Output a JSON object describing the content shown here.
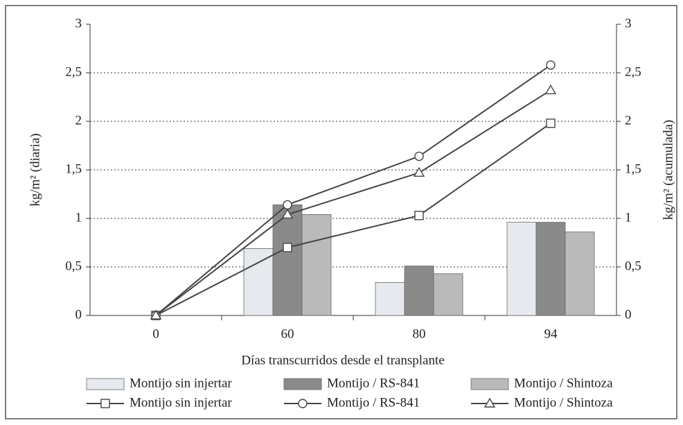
{
  "chart_data": {
    "type": "bar",
    "xlabel": "Días transcurridos desde el transplante",
    "ylabel": "kg/m² (diaria)",
    "y2label": "kg/m² (acumulada)",
    "categories": [
      "0",
      "60",
      "80",
      "94"
    ],
    "ylim": [
      0,
      3
    ],
    "yticks": [
      0,
      {
        "value": 0.5,
        "label": "0,5"
      },
      1,
      {
        "value": 1.5,
        "label": "1,5"
      },
      2,
      {
        "value": 2.5,
        "label": "2,5"
      },
      3
    ],
    "y2lim": [
      0,
      3
    ],
    "y2ticks": [
      0,
      {
        "value": 0.5,
        "label": "0,5"
      },
      1,
      {
        "value": 1.5,
        "label": "1,5"
      },
      2,
      {
        "value": 2.5,
        "label": "2,5"
      },
      3
    ],
    "grid": true,
    "legend": "bottom",
    "series": [
      {
        "name": "Montijo sin injertar",
        "type": "bar",
        "color": "#e6eaee",
        "values": [
          null,
          0.69,
          0.34,
          0.96
        ]
      },
      {
        "name": "Montijo / RS-841",
        "type": "bar",
        "color": "#8a8a8a",
        "values": [
          null,
          1.14,
          0.51,
          0.96
        ]
      },
      {
        "name": "Montijo / Shintoza",
        "type": "bar",
        "color": "#bababa",
        "values": [
          null,
          1.04,
          0.43,
          0.86
        ]
      },
      {
        "name": "Montijo sin injertar",
        "type": "line",
        "axis": "y2",
        "marker": "square",
        "color": "#444444",
        "values": [
          0,
          0.7,
          1.03,
          1.98
        ]
      },
      {
        "name": "Montijo / RS-841",
        "type": "line",
        "axis": "y2",
        "marker": "circle",
        "color": "#444444",
        "values": [
          0,
          1.14,
          1.64,
          2.58
        ]
      },
      {
        "name": "Montijo / Shintoza",
        "type": "line",
        "axis": "y2",
        "marker": "triangle",
        "color": "#444444",
        "values": [
          0,
          1.04,
          1.47,
          2.32
        ]
      }
    ]
  }
}
